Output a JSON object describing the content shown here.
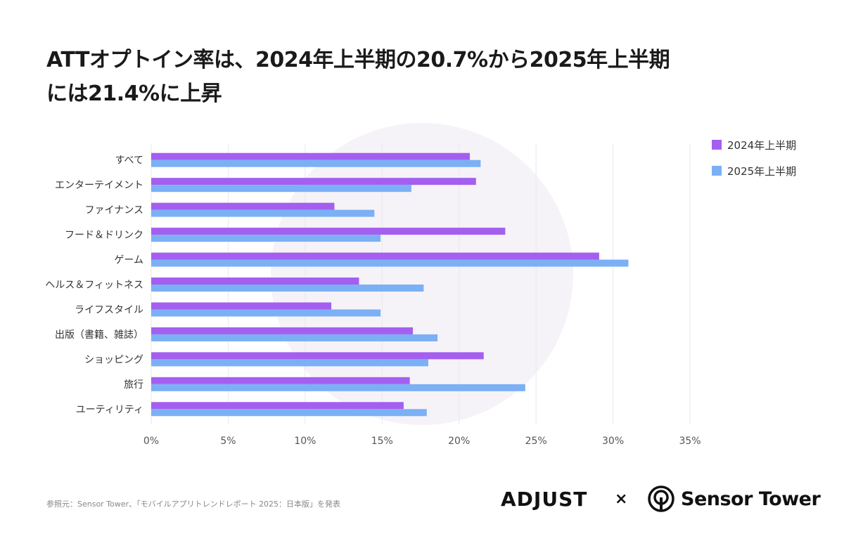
{
  "title": {
    "line1": "ATTオプトイン率は、2024年上半期の20.7%から2025年上半期",
    "line2": "には21.4%に上昇"
  },
  "chart_data": {
    "type": "bar",
    "orientation": "horizontal",
    "categories": [
      "すべて",
      "エンターテイメント",
      "ファイナンス",
      "フード＆ドリンク",
      "ゲーム",
      "ヘルス＆フィットネス",
      "ライフスタイル",
      "出版（書籍、雑誌）",
      "ショッピング",
      "旅行",
      "ユーティリティ"
    ],
    "series": [
      {
        "name": "2024年上半期",
        "color": "#a45ff0",
        "values": [
          20.7,
          21.1,
          11.9,
          23.0,
          29.1,
          13.5,
          11.7,
          17.0,
          21.6,
          16.8,
          16.4
        ]
      },
      {
        "name": "2025年上半期",
        "color": "#7bb0f5",
        "values": [
          21.4,
          16.9,
          14.5,
          14.9,
          31.0,
          17.7,
          14.9,
          18.6,
          18.0,
          24.3,
          17.9
        ]
      }
    ],
    "xlim": [
      0,
      35
    ],
    "xticks": [
      0,
      5,
      10,
      15,
      20,
      25,
      30,
      35
    ],
    "xtick_labels": [
      "0%",
      "5%",
      "10%",
      "15%",
      "20%",
      "25%",
      "30%",
      "35%"
    ],
    "grid": true,
    "legend_position": "right"
  },
  "footer": {
    "source": "参照元：Sensor Tower、「モバイルアプリトレンドレポート 2025：日本版」を発表",
    "logo_adjust": "ADJUST",
    "logo_separator": "×",
    "logo_sensortower": "Sensor Tower"
  }
}
